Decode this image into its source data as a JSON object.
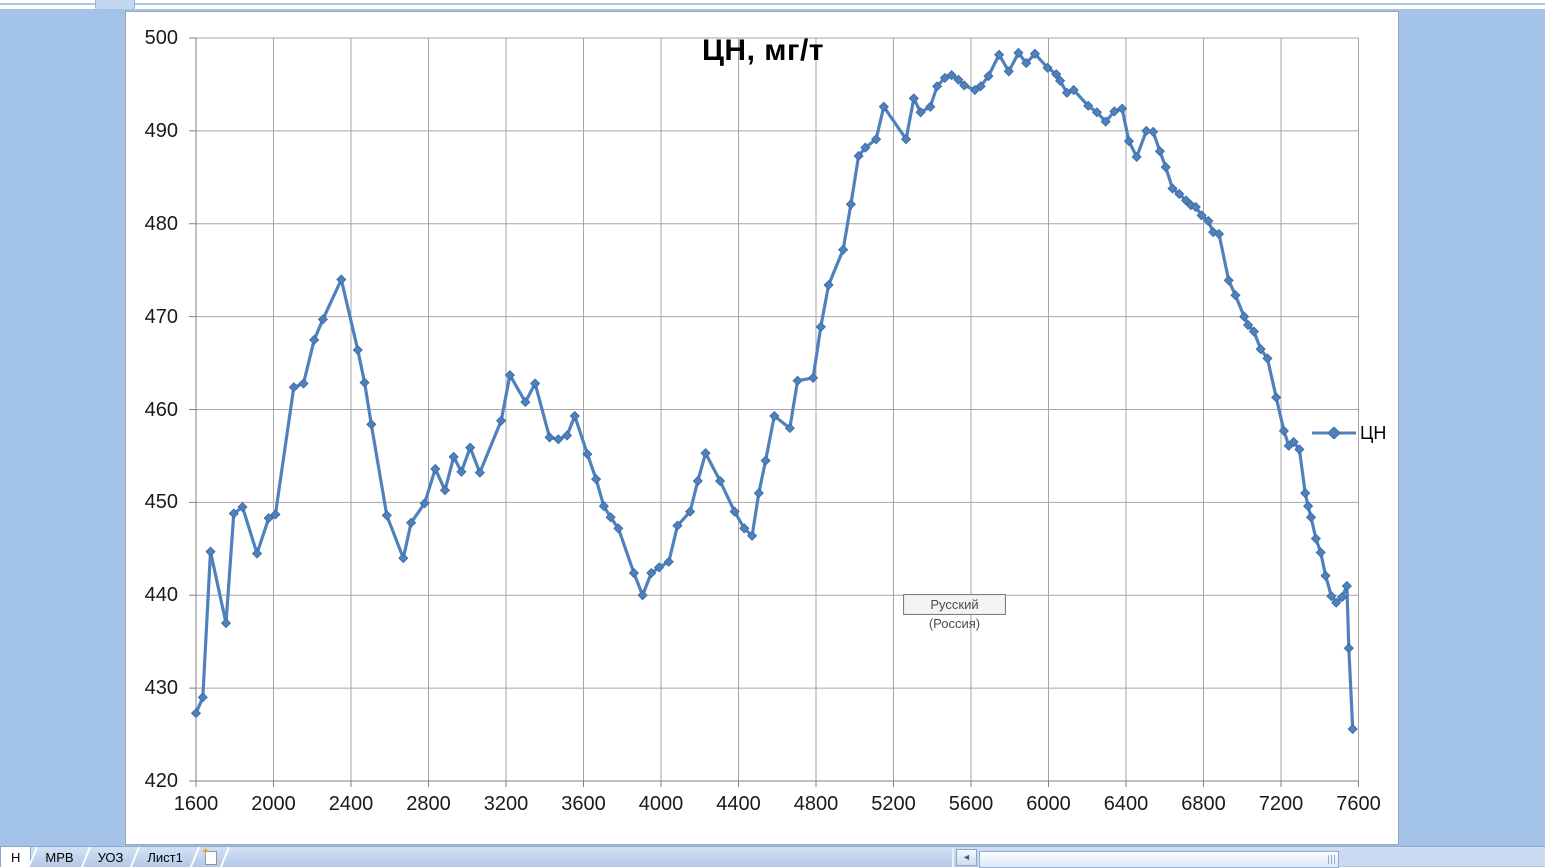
{
  "window": {
    "sheet_background_color": "#a4c3e8"
  },
  "tooltip": {
    "text": "Русский (Россия)"
  },
  "sheet_tabs": {
    "tabs": [
      {
        "label": "Н",
        "active": true
      },
      {
        "label": "МРВ",
        "active": false
      },
      {
        "label": "УОЗ",
        "active": false
      },
      {
        "label": "Лист1",
        "active": false
      }
    ]
  },
  "scrollbar": {
    "left_arrow": "◄"
  },
  "chart_data": {
    "type": "line",
    "title": "ЦН, мг/т",
    "xlabel": "",
    "ylabel": "",
    "xlim": [
      1600,
      7600
    ],
    "ylim": [
      420,
      500
    ],
    "x_ticks": [
      1600,
      2000,
      2400,
      2800,
      3200,
      3600,
      4000,
      4400,
      4800,
      5200,
      5600,
      6000,
      6400,
      6800,
      7200,
      7600
    ],
    "y_ticks": [
      420,
      430,
      440,
      450,
      460,
      470,
      480,
      490,
      500
    ],
    "grid": true,
    "legend": {
      "position": "right",
      "entries": [
        "ЦН"
      ]
    },
    "series": [
      {
        "name": "ЦН",
        "color": "#4f81bd",
        "marker": "diamond",
        "points": [
          [
            1600,
            427.3
          ],
          [
            1635,
            429.0
          ],
          [
            1675,
            444.7
          ],
          [
            1755,
            437.0
          ],
          [
            1795,
            448.8
          ],
          [
            1840,
            449.5
          ],
          [
            1915,
            444.5
          ],
          [
            1975,
            448.3
          ],
          [
            2010,
            448.7
          ],
          [
            2105,
            462.4
          ],
          [
            2155,
            462.8
          ],
          [
            2210,
            467.5
          ],
          [
            2255,
            469.7
          ],
          [
            2350,
            474.0
          ],
          [
            2435,
            466.4
          ],
          [
            2470,
            462.9
          ],
          [
            2505,
            458.4
          ],
          [
            2585,
            448.6
          ],
          [
            2670,
            444.0
          ],
          [
            2710,
            447.8
          ],
          [
            2780,
            449.9
          ],
          [
            2835,
            453.6
          ],
          [
            2885,
            451.3
          ],
          [
            2930,
            454.9
          ],
          [
            2970,
            453.3
          ],
          [
            3015,
            455.9
          ],
          [
            3065,
            453.2
          ],
          [
            3175,
            458.8
          ],
          [
            3220,
            463.7
          ],
          [
            3300,
            460.8
          ],
          [
            3350,
            462.8
          ],
          [
            3425,
            457.0
          ],
          [
            3470,
            456.8
          ],
          [
            3515,
            457.2
          ],
          [
            3555,
            459.3
          ],
          [
            3620,
            455.2
          ],
          [
            3665,
            452.5
          ],
          [
            3705,
            449.6
          ],
          [
            3740,
            448.4
          ],
          [
            3780,
            447.2
          ],
          [
            3860,
            442.4
          ],
          [
            3905,
            440.0
          ],
          [
            3950,
            442.4
          ],
          [
            3990,
            443.0
          ],
          [
            4040,
            443.6
          ],
          [
            4085,
            447.5
          ],
          [
            4150,
            449.0
          ],
          [
            4190,
            452.3
          ],
          [
            4230,
            455.3
          ],
          [
            4305,
            452.3
          ],
          [
            4380,
            449.0
          ],
          [
            4430,
            447.2
          ],
          [
            4470,
            446.4
          ],
          [
            4505,
            451.0
          ],
          [
            4540,
            454.5
          ],
          [
            4585,
            459.3
          ],
          [
            4665,
            458.0
          ],
          [
            4705,
            463.1
          ],
          [
            4785,
            463.4
          ],
          [
            4825,
            468.9
          ],
          [
            4865,
            473.4
          ],
          [
            4940,
            477.2
          ],
          [
            4980,
            482.1
          ],
          [
            5020,
            487.3
          ],
          [
            5055,
            488.2
          ],
          [
            5110,
            489.1
          ],
          [
            5150,
            492.6
          ],
          [
            5265,
            489.1
          ],
          [
            5305,
            493.5
          ],
          [
            5340,
            492.0
          ],
          [
            5390,
            492.6
          ],
          [
            5425,
            494.8
          ],
          [
            5465,
            495.7
          ],
          [
            5500,
            496.0
          ],
          [
            5535,
            495.5
          ],
          [
            5565,
            494.9
          ],
          [
            5620,
            494.4
          ],
          [
            5650,
            494.8
          ],
          [
            5690,
            495.9
          ],
          [
            5745,
            498.2
          ],
          [
            5795,
            496.4
          ],
          [
            5845,
            498.4
          ],
          [
            5885,
            497.3
          ],
          [
            5930,
            498.3
          ],
          [
            5995,
            496.8
          ],
          [
            6040,
            496.1
          ],
          [
            6060,
            495.4
          ],
          [
            6095,
            494.1
          ],
          [
            6130,
            494.4
          ],
          [
            6205,
            492.7
          ],
          [
            6250,
            492.0
          ],
          [
            6295,
            491.0
          ],
          [
            6340,
            492.1
          ],
          [
            6380,
            492.4
          ],
          [
            6415,
            488.9
          ],
          [
            6455,
            487.2
          ],
          [
            6505,
            490.0
          ],
          [
            6540,
            489.9
          ],
          [
            6575,
            487.8
          ],
          [
            6605,
            486.1
          ],
          [
            6640,
            483.8
          ],
          [
            6675,
            483.2
          ],
          [
            6710,
            482.5
          ],
          [
            6735,
            482.0
          ],
          [
            6760,
            481.8
          ],
          [
            6790,
            480.9
          ],
          [
            6825,
            480.3
          ],
          [
            6850,
            479.1
          ],
          [
            6880,
            478.9
          ],
          [
            6930,
            473.9
          ],
          [
            6965,
            472.3
          ],
          [
            7010,
            470.0
          ],
          [
            7030,
            469.1
          ],
          [
            7060,
            468.4
          ],
          [
            7095,
            466.5
          ],
          [
            7130,
            465.5
          ],
          [
            7175,
            461.3
          ],
          [
            7215,
            457.7
          ],
          [
            7240,
            456.1
          ],
          [
            7265,
            456.5
          ],
          [
            7295,
            455.7
          ],
          [
            7325,
            451.0
          ],
          [
            7340,
            449.6
          ],
          [
            7355,
            448.4
          ],
          [
            7380,
            446.1
          ],
          [
            7405,
            444.6
          ],
          [
            7430,
            442.1
          ],
          [
            7460,
            439.9
          ],
          [
            7485,
            439.2
          ],
          [
            7515,
            439.8
          ],
          [
            7540,
            441.0
          ],
          [
            7550,
            434.3
          ],
          [
            7570,
            425.6
          ]
        ]
      }
    ],
    "colors": {
      "series": "#4f81bd",
      "gridline": "#a6a6a6",
      "axis": "#808080"
    }
  }
}
